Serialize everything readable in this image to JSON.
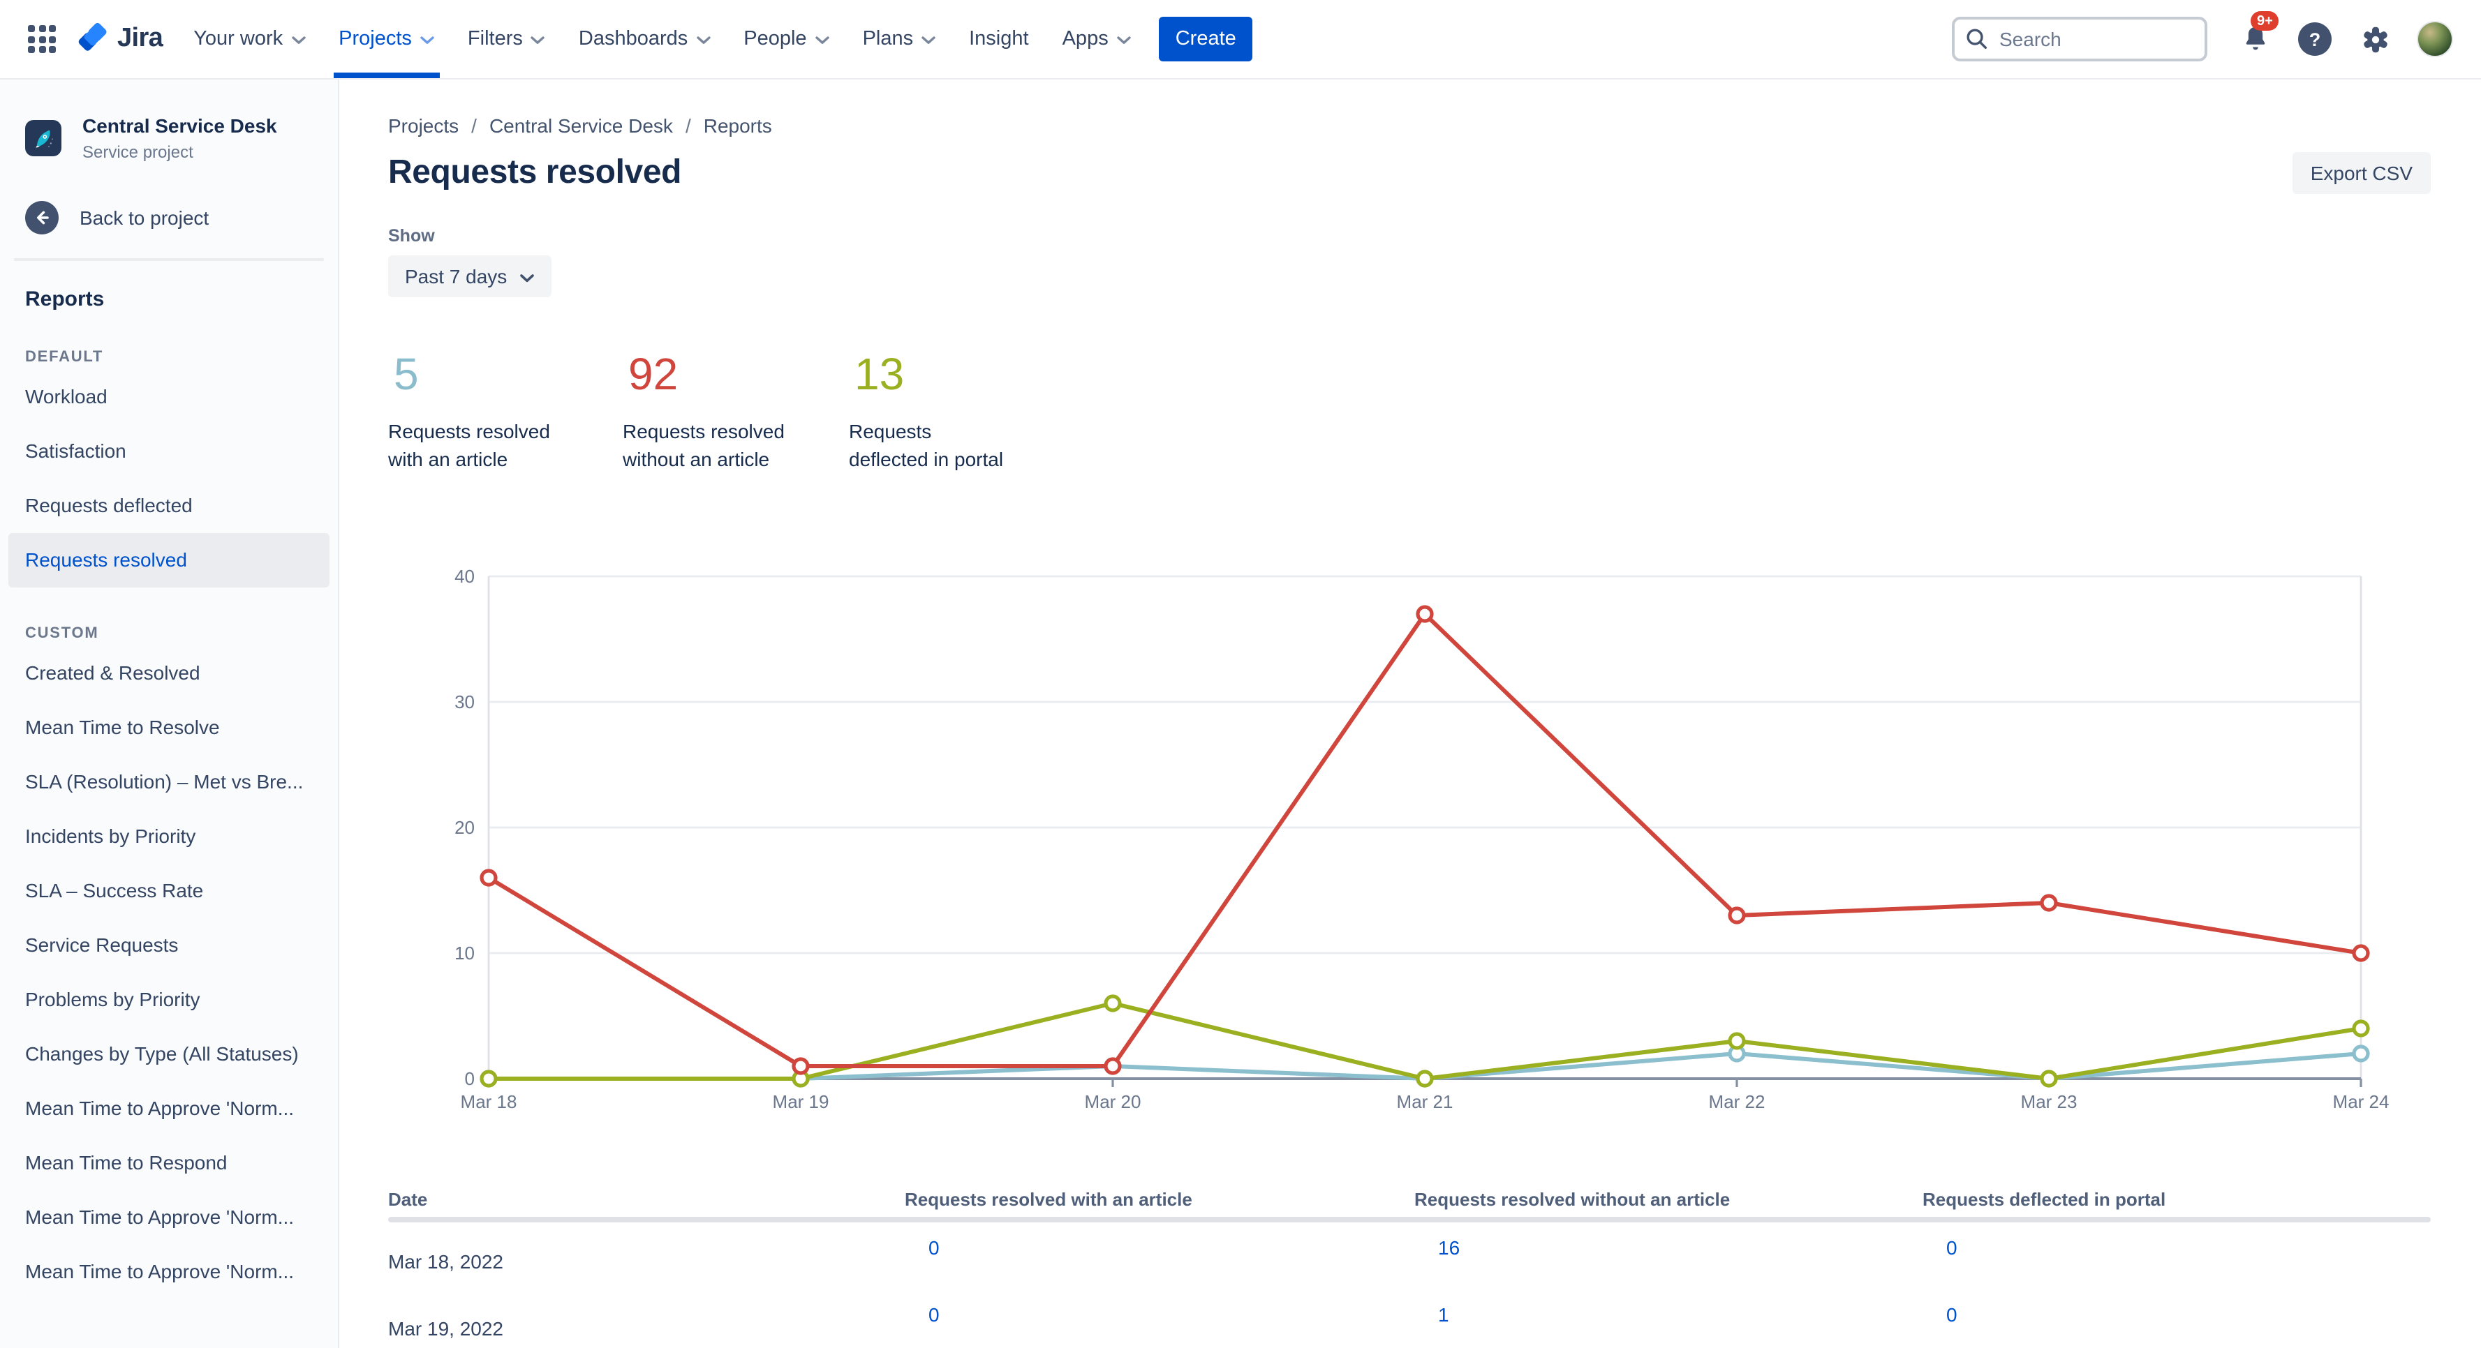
{
  "nav": {
    "logo_text": "Jira",
    "items": [
      {
        "label": "Your work",
        "has_chevron": true,
        "active": false
      },
      {
        "label": "Projects",
        "has_chevron": true,
        "active": true
      },
      {
        "label": "Filters",
        "has_chevron": true,
        "active": false
      },
      {
        "label": "Dashboards",
        "has_chevron": true,
        "active": false
      },
      {
        "label": "People",
        "has_chevron": true,
        "active": false
      },
      {
        "label": "Plans",
        "has_chevron": true,
        "active": false
      },
      {
        "label": "Insight",
        "has_chevron": false,
        "active": false
      },
      {
        "label": "Apps",
        "has_chevron": true,
        "active": false
      }
    ],
    "create_label": "Create",
    "search_placeholder": "Search",
    "notification_badge": "9+"
  },
  "sidebar": {
    "project_name": "Central Service Desk",
    "project_type": "Service project",
    "back_label": "Back to project",
    "reports_heading": "Reports",
    "active_item": "Requests resolved",
    "groups": [
      {
        "label": "DEFAULT",
        "items": [
          "Workload",
          "Satisfaction",
          "Requests deflected",
          "Requests resolved"
        ]
      },
      {
        "label": "CUSTOM",
        "items": [
          "Created & Resolved",
          "Mean Time to Resolve",
          "SLA (Resolution) – Met vs Bre...",
          "Incidents by Priority",
          "SLA – Success Rate",
          "Service Requests",
          "Problems by Priority",
          "Changes by Type (All Statuses)",
          "Mean Time to Approve 'Norm...",
          "Mean Time to Respond",
          "Mean Time to Approve 'Norm...",
          "Mean Time to Approve 'Norm..."
        ]
      }
    ]
  },
  "breadcrumb": {
    "items": [
      "Projects",
      "Central Service Desk",
      "Reports"
    ]
  },
  "page": {
    "title": "Requests resolved",
    "export_label": "Export CSV",
    "show_label": "Show",
    "period_value": "Past 7 days"
  },
  "stats": [
    {
      "value": "5",
      "color": "#8BBCCC",
      "label": "Requests resolved with an article",
      "label_lines": [
        "Requests resolved",
        "with an article"
      ]
    },
    {
      "value": "92",
      "color": "#D0453C",
      "label": "Requests resolved without an article",
      "label_lines": [
        "Requests resolved",
        "without an article"
      ]
    },
    {
      "value": "13",
      "color": "#9BB021",
      "label": "Requests deflected in portal",
      "label_lines": [
        "Requests",
        "deflected in portal"
      ]
    }
  ],
  "chart_data": {
    "type": "line",
    "x": [
      "Mar 18",
      "Mar 19",
      "Mar 20",
      "Mar 21",
      "Mar 22",
      "Mar 23",
      "Mar 24"
    ],
    "series": [
      {
        "name": "Requests resolved with an article",
        "color": "#8BBFCE",
        "values": [
          0,
          0,
          1,
          0,
          2,
          0,
          2
        ]
      },
      {
        "name": "Requests deflected in portal",
        "color": "#9BB021",
        "values": [
          0,
          0,
          6,
          0,
          3,
          0,
          4
        ]
      },
      {
        "name": "Requests resolved without an article",
        "color": "#D0453C",
        "values": [
          16,
          1,
          1,
          37,
          13,
          14,
          10
        ]
      }
    ],
    "title": "",
    "xlabel": "",
    "ylabel": "",
    "ylim": [
      0,
      40
    ],
    "yticks": [
      0,
      10,
      20,
      30,
      40
    ],
    "grid": true,
    "legend": "none"
  },
  "table": {
    "columns": [
      "Date",
      "Requests resolved with an article",
      "Requests resolved without an article",
      "Requests deflected in portal"
    ],
    "rows": [
      {
        "date": "Mar 18, 2022",
        "values": [
          "0",
          "16",
          "0"
        ]
      },
      {
        "date": "Mar 19, 2022",
        "values": [
          "0",
          "1",
          "0"
        ]
      }
    ]
  }
}
